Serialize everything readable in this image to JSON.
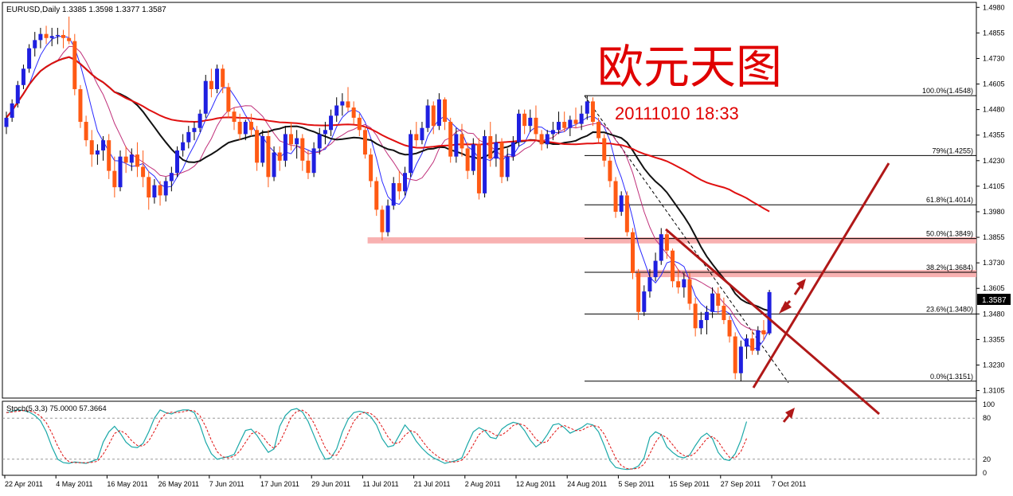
{
  "header": {
    "symbol_line": "EURUSD,Daily  1.3385 1.3598 1.3377 1.3587",
    "overlay_title": "欧元天图",
    "overlay_datetime": "20111010 18:33"
  },
  "colors": {
    "bull": "#1f1fe0",
    "bear": "#ff5a14",
    "ma_fast": "#2a2aff",
    "ma_mid": "#c0307a",
    "ma_black": "#111111",
    "ma_long": "#e01010",
    "zone": "#f7a8a8",
    "trendline": "#b01818",
    "overlay_text": "#e00000",
    "stoch_main": "#1aa8a8",
    "stoch_signal": "#e01010"
  },
  "chart_data": [
    {
      "type": "candlestick",
      "title": "EURUSD,Daily",
      "last_price": "1.3587",
      "ylim": [
        1.308,
        1.4985
      ],
      "y_ticks": [
        "1.4980",
        "1.4855",
        "1.4730",
        "1.4605",
        "1.4480",
        "1.4355",
        "1.4230",
        "1.4105",
        "1.3980",
        "1.3855",
        "1.3730",
        "1.3605",
        "1.3480",
        "1.3355",
        "1.3230",
        "1.3105"
      ],
      "x_ticks": [
        "22 Apr 2011",
        "4 May 2011",
        "16 May 2011",
        "26 May 2011",
        "7 Jun 2011",
        "17 Jun 2011",
        "29 Jun 2011",
        "11 Jul 2011",
        "21 Jul 2011",
        "2 Aug 2011",
        "12 Aug 2011",
        "24 Aug 2011",
        "5 Sep 2011",
        "15 Sep 2011",
        "27 Sep 2011",
        "7 Oct 2011"
      ],
      "candles": [
        [
          1.4395,
          1.447,
          1.436,
          1.444
        ],
        [
          1.444,
          1.453,
          1.442,
          1.451
        ],
        [
          1.451,
          1.462,
          1.449,
          1.46
        ],
        [
          1.46,
          1.47,
          1.458,
          1.468
        ],
        [
          1.468,
          1.48,
          1.466,
          1.478
        ],
        [
          1.478,
          1.486,
          1.474,
          1.482
        ],
        [
          1.482,
          1.488,
          1.478,
          1.485
        ],
        [
          1.485,
          1.489,
          1.48,
          1.483
        ],
        [
          1.483,
          1.488,
          1.479,
          1.484
        ],
        [
          1.484,
          1.488,
          1.48,
          1.4845
        ],
        [
          1.4845,
          1.487,
          1.478,
          1.483
        ],
        [
          1.483,
          1.4935,
          1.48,
          1.4815
        ],
        [
          1.4815,
          1.485,
          1.455,
          1.458
        ],
        [
          1.458,
          1.46,
          1.439,
          1.442
        ],
        [
          1.442,
          1.445,
          1.43,
          1.433
        ],
        [
          1.433,
          1.438,
          1.42,
          1.426
        ],
        [
          1.426,
          1.431,
          1.421,
          1.428
        ],
        [
          1.428,
          1.435,
          1.423,
          1.433
        ],
        [
          1.433,
          1.436,
          1.414,
          1.418
        ],
        [
          1.418,
          1.425,
          1.405,
          1.41
        ],
        [
          1.41,
          1.428,
          1.408,
          1.425
        ],
        [
          1.425,
          1.43,
          1.417,
          1.422
        ],
        [
          1.422,
          1.429,
          1.418,
          1.426
        ],
        [
          1.426,
          1.432,
          1.415,
          1.42
        ],
        [
          1.42,
          1.428,
          1.41,
          1.415
        ],
        [
          1.415,
          1.418,
          1.399,
          1.405
        ],
        [
          1.405,
          1.414,
          1.402,
          1.411
        ],
        [
          1.411,
          1.413,
          1.401,
          1.406
        ],
        [
          1.406,
          1.415,
          1.403,
          1.413
        ],
        [
          1.413,
          1.42,
          1.408,
          1.417
        ],
        [
          1.417,
          1.43,
          1.415,
          1.428
        ],
        [
          1.428,
          1.436,
          1.425,
          1.432
        ],
        [
          1.432,
          1.44,
          1.429,
          1.437
        ],
        [
          1.437,
          1.442,
          1.433,
          1.439
        ],
        [
          1.439,
          1.448,
          1.437,
          1.446
        ],
        [
          1.446,
          1.465,
          1.444,
          1.462
        ],
        [
          1.462,
          1.468,
          1.454,
          1.458
        ],
        [
          1.458,
          1.47,
          1.456,
          1.468
        ],
        [
          1.468,
          1.47,
          1.456,
          1.459
        ],
        [
          1.459,
          1.461,
          1.444,
          1.447
        ],
        [
          1.447,
          1.449,
          1.438,
          1.442
        ],
        [
          1.442,
          1.446,
          1.433,
          1.436
        ],
        [
          1.436,
          1.443,
          1.433,
          1.442
        ],
        [
          1.442,
          1.446,
          1.435,
          1.438
        ],
        [
          1.438,
          1.44,
          1.418,
          1.422
        ],
        [
          1.422,
          1.438,
          1.42,
          1.435
        ],
        [
          1.435,
          1.438,
          1.41,
          1.415
        ],
        [
          1.415,
          1.43,
          1.413,
          1.427
        ],
        [
          1.427,
          1.43,
          1.418,
          1.423
        ],
        [
          1.423,
          1.44,
          1.42,
          1.436
        ],
        [
          1.436,
          1.442,
          1.428,
          1.431
        ],
        [
          1.431,
          1.438,
          1.424,
          1.434
        ],
        [
          1.434,
          1.436,
          1.418,
          1.423
        ],
        [
          1.423,
          1.428,
          1.414,
          1.417
        ],
        [
          1.417,
          1.432,
          1.415,
          1.429
        ],
        [
          1.429,
          1.439,
          1.426,
          1.436
        ],
        [
          1.436,
          1.442,
          1.431,
          1.438
        ],
        [
          1.438,
          1.448,
          1.435,
          1.445
        ],
        [
          1.445,
          1.454,
          1.442,
          1.45
        ],
        [
          1.45,
          1.456,
          1.445,
          1.452
        ],
        [
          1.452,
          1.459,
          1.447,
          1.449
        ],
        [
          1.449,
          1.452,
          1.441,
          1.444
        ],
        [
          1.444,
          1.446,
          1.435,
          1.438
        ],
        [
          1.438,
          1.44,
          1.424,
          1.426
        ],
        [
          1.426,
          1.429,
          1.41,
          1.413
        ],
        [
          1.413,
          1.415,
          1.396,
          1.399
        ],
        [
          1.399,
          1.401,
          1.384,
          1.388
        ],
        [
          1.388,
          1.404,
          1.386,
          1.401
        ],
        [
          1.401,
          1.415,
          1.399,
          1.412
        ],
        [
          1.412,
          1.418,
          1.404,
          1.408
        ],
        [
          1.408,
          1.42,
          1.406,
          1.417
        ],
        [
          1.417,
          1.438,
          1.415,
          1.436
        ],
        [
          1.436,
          1.442,
          1.43,
          1.433
        ],
        [
          1.433,
          1.442,
          1.431,
          1.439
        ],
        [
          1.439,
          1.453,
          1.437,
          1.45
        ],
        [
          1.45,
          1.452,
          1.436,
          1.44
        ],
        [
          1.44,
          1.456,
          1.438,
          1.453
        ],
        [
          1.453,
          1.454,
          1.438,
          1.442
        ],
        [
          1.442,
          1.444,
          1.422,
          1.425
        ],
        [
          1.425,
          1.439,
          1.422,
          1.436
        ],
        [
          1.436,
          1.441,
          1.425,
          1.429
        ],
        [
          1.429,
          1.432,
          1.414,
          1.418
        ],
        [
          1.418,
          1.434,
          1.416,
          1.431
        ],
        [
          1.431,
          1.434,
          1.404,
          1.407
        ],
        [
          1.407,
          1.438,
          1.405,
          1.435
        ],
        [
          1.435,
          1.442,
          1.42,
          1.424
        ],
        [
          1.424,
          1.436,
          1.42,
          1.432
        ],
        [
          1.432,
          1.434,
          1.412,
          1.415
        ],
        [
          1.415,
          1.429,
          1.413,
          1.425
        ],
        [
          1.425,
          1.435,
          1.423,
          1.432
        ],
        [
          1.432,
          1.448,
          1.43,
          1.446
        ],
        [
          1.446,
          1.448,
          1.436,
          1.44
        ],
        [
          1.44,
          1.448,
          1.437,
          1.444
        ],
        [
          1.444,
          1.45,
          1.433,
          1.436
        ],
        [
          1.436,
          1.438,
          1.428,
          1.431
        ],
        [
          1.431,
          1.438,
          1.429,
          1.436
        ],
        [
          1.436,
          1.442,
          1.433,
          1.438
        ],
        [
          1.438,
          1.447,
          1.436,
          1.442
        ],
        [
          1.442,
          1.447,
          1.437,
          1.439
        ],
        [
          1.439,
          1.445,
          1.435,
          1.443
        ],
        [
          1.443,
          1.449,
          1.439,
          1.441
        ],
        [
          1.441,
          1.45,
          1.438,
          1.446
        ],
        [
          1.446,
          1.4548,
          1.443,
          1.452
        ],
        [
          1.452,
          1.454,
          1.44,
          1.442
        ],
        [
          1.442,
          1.444,
          1.432,
          1.434
        ],
        [
          1.434,
          1.436,
          1.42,
          1.423
        ],
        [
          1.423,
          1.425,
          1.41,
          1.413
        ],
        [
          1.413,
          1.415,
          1.395,
          1.398
        ],
        [
          1.398,
          1.408,
          1.396,
          1.406
        ],
        [
          1.406,
          1.408,
          1.386,
          1.388
        ],
        [
          1.388,
          1.39,
          1.365,
          1.368
        ],
        [
          1.368,
          1.37,
          1.345,
          1.349
        ],
        [
          1.349,
          1.362,
          1.347,
          1.359
        ],
        [
          1.359,
          1.37,
          1.356,
          1.366
        ],
        [
          1.366,
          1.378,
          1.364,
          1.374
        ],
        [
          1.374,
          1.39,
          1.372,
          1.387
        ],
        [
          1.387,
          1.389,
          1.375,
          1.379
        ],
        [
          1.379,
          1.38,
          1.361,
          1.364
        ],
        [
          1.364,
          1.37,
          1.358,
          1.361
        ],
        [
          1.361,
          1.368,
          1.356,
          1.365
        ],
        [
          1.365,
          1.368,
          1.35,
          1.353
        ],
        [
          1.353,
          1.356,
          1.337,
          1.341
        ],
        [
          1.341,
          1.349,
          1.338,
          1.345
        ],
        [
          1.345,
          1.352,
          1.338,
          1.349
        ],
        [
          1.349,
          1.361,
          1.346,
          1.358
        ],
        [
          1.358,
          1.361,
          1.348,
          1.352
        ],
        [
          1.352,
          1.356,
          1.343,
          1.345
        ],
        [
          1.345,
          1.347,
          1.334,
          1.337
        ],
        [
          1.337,
          1.339,
          1.316,
          1.319
        ],
        [
          1.319,
          1.335,
          1.3151,
          1.332
        ],
        [
          1.332,
          1.338,
          1.326,
          1.336
        ],
        [
          1.336,
          1.34,
          1.328,
          1.33
        ],
        [
          1.33,
          1.342,
          1.328,
          1.34
        ],
        [
          1.34,
          1.345,
          1.335,
          1.338
        ],
        [
          1.3385,
          1.3598,
          1.3377,
          1.3587
        ]
      ],
      "fibonacci": [
        {
          "level": 100.0,
          "label": "100.0%(1.4548)",
          "price": 1.4548
        },
        {
          "level": 79.0,
          "label": "79%(1.4255)",
          "price": 1.4255
        },
        {
          "level": 61.8,
          "label": "61.8%(1.4014)",
          "price": 1.4014
        },
        {
          "level": 50.0,
          "label": "50.0%(1.3849)",
          "price": 1.3849
        },
        {
          "level": 38.2,
          "label": "38.2%(1.3684)",
          "price": 1.3684
        },
        {
          "level": 23.6,
          "label": "23.6%(1.3480)",
          "price": 1.348
        },
        {
          "level": 0.0,
          "label": "0.0%(1.3151)",
          "price": 1.3151
        }
      ],
      "resistance_zones": [
        {
          "from_candle": 64,
          "price_low": 1.3825,
          "price_high": 1.3855
        },
        {
          "from_candle": 111,
          "price_low": 1.366,
          "price_high": 1.3695
        }
      ],
      "moving_averages": [
        {
          "period": 5,
          "color": "ma_fast"
        },
        {
          "period": 10,
          "color": "ma_mid"
        },
        {
          "period": 20,
          "color": "ma_black"
        },
        {
          "period": 60,
          "color": "ma_long"
        }
      ]
    },
    {
      "type": "line",
      "title": "Stoch(5,3,3) 75.0000 57.3664",
      "ylim": [
        0,
        100
      ],
      "y_ticks": [
        "100",
        "80",
        "20",
        "0"
      ],
      "levels": [
        80,
        20
      ],
      "k": [
        88,
        90,
        92,
        91,
        89,
        84,
        76,
        60,
        38,
        20,
        15,
        14,
        16,
        15,
        14,
        17,
        20,
        45,
        60,
        68,
        58,
        45,
        38,
        37,
        43,
        60,
        80,
        92,
        88,
        86,
        90,
        92,
        92,
        88,
        70,
        45,
        28,
        20,
        22,
        24,
        27,
        45,
        62,
        64,
        55,
        42,
        30,
        35,
        68,
        84,
        92,
        94,
        89,
        75,
        55,
        35,
        20,
        22,
        35,
        60,
        78,
        88,
        90,
        88,
        82,
        70,
        50,
        38,
        40,
        55,
        70,
        60,
        46,
        36,
        28,
        22,
        18,
        14,
        16,
        18,
        22,
        42,
        60,
        66,
        62,
        52,
        50,
        64,
        70,
        74,
        72,
        62,
        48,
        38,
        44,
        56,
        70,
        72,
        66,
        58,
        62,
        66,
        72,
        70,
        60,
        40,
        18,
        8,
        6,
        5,
        6,
        10,
        22,
        52,
        60,
        56,
        38,
        30,
        24,
        22,
        26,
        40,
        52,
        58,
        50,
        30,
        20,
        18,
        28,
        48,
        75
      ]
    }
  ]
}
